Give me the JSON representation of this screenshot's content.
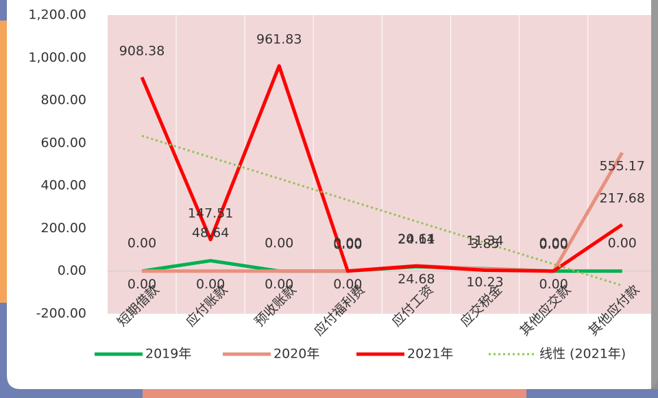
{
  "chart_data": {
    "type": "line",
    "categories": [
      "短期借款",
      "应付账款",
      "预收账款",
      "应付福利费",
      "应付工资",
      "应交税金",
      "其他应交款",
      "其他应付款"
    ],
    "series": [
      {
        "name": "2019年",
        "color": "#00b050",
        "values": [
          0,
          48.64,
          0,
          0,
          20.64,
          11.34,
          0,
          0
        ],
        "value_labels": [
          "0.00",
          "48.64",
          "0.00",
          "0.00",
          "20.64",
          "11.34",
          "0.00",
          "0.00"
        ]
      },
      {
        "name": "2020年",
        "color": "#e8907e",
        "values": [
          0,
          0,
          0,
          0,
          24.68,
          10.23,
          0,
          555.17
        ],
        "value_labels": [
          "0.00",
          "0.00",
          "0.00",
          "0.00",
          "24.68",
          "10.23",
          "0.00",
          "555.17"
        ]
      },
      {
        "name": "2021年",
        "color": "#ff0000",
        "values": [
          908.38,
          147.51,
          961.83,
          0,
          24.11,
          3.85,
          0,
          217.68
        ],
        "value_labels": [
          "908.38",
          "147.51",
          "961.83",
          "0.00",
          "24.11",
          "3.85",
          "0.00",
          "217.68"
        ],
        "trendline": {
          "name": "线性 (2021年)",
          "color": "#92c353"
        }
      }
    ],
    "ylim": [
      -200,
      1200
    ],
    "yticks": [
      {
        "value": -200,
        "label": "-200.00"
      },
      {
        "value": 0,
        "label": "0.00"
      },
      {
        "value": 200,
        "label": "200.00"
      },
      {
        "value": 400,
        "label": "400.00"
      },
      {
        "value": 600,
        "label": "600.00"
      },
      {
        "value": 800,
        "label": "800.00"
      },
      {
        "value": 1000,
        "label": "1,000.00"
      },
      {
        "value": 1200,
        "label": "1,200.00"
      }
    ],
    "legend": "bottom"
  }
}
